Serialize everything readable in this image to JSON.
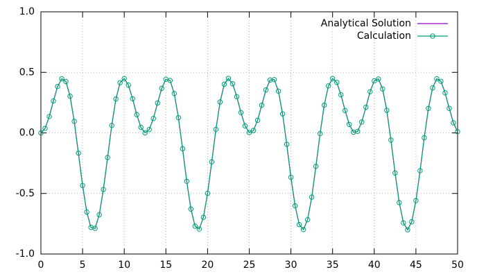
{
  "chart_data": {
    "type": "line",
    "x": [
      0,
      0.5,
      1,
      1.5,
      2,
      2.5,
      3,
      3.5,
      4,
      4.5,
      5,
      5.5,
      6,
      6.5,
      7,
      7.5,
      8,
      8.5,
      9,
      9.5,
      10,
      10.5,
      11,
      11.5,
      12,
      12.5,
      13,
      13.5,
      14,
      14.5,
      15,
      15.5,
      16,
      16.5,
      17,
      17.5,
      18,
      18.5,
      19,
      19.5,
      20,
      20.5,
      21,
      21.5,
      22,
      22.5,
      23,
      23.5,
      24,
      24.5,
      25,
      25.5,
      26,
      26.5,
      27,
      27.5,
      28,
      28.5,
      29,
      29.5,
      30,
      30.5,
      31,
      31.5,
      32,
      32.5,
      33,
      33.5,
      34,
      34.5,
      35,
      35.5,
      36,
      36.5,
      37,
      37.5,
      38,
      38.5,
      39,
      39.5,
      40,
      40.5,
      41,
      41.5,
      42,
      42.5,
      43,
      43.5,
      44,
      44.5,
      45,
      45.5,
      46,
      46.5,
      47,
      47.5,
      48,
      48.5,
      49,
      49.5,
      50
    ],
    "series": [
      {
        "name": "Analytical Solution",
        "color": "#9400d3",
        "marker": "none",
        "values": [
          0,
          0.037,
          0.135,
          0.264,
          0.383,
          0.447,
          0.424,
          0.303,
          0.095,
          -0.167,
          -0.434,
          -0.653,
          -0.78,
          -0.788,
          -0.676,
          -0.467,
          -0.203,
          0.062,
          0.28,
          0.414,
          0.449,
          0.395,
          0.282,
          0.151,
          0.046,
          0.001,
          0.028,
          0.119,
          0.247,
          0.368,
          0.443,
          0.433,
          0.325,
          0.126,
          -0.131,
          -0.4,
          -0.629,
          -0.77,
          -0.794,
          -0.697,
          -0.499,
          -0.239,
          0.029,
          0.255,
          0.402,
          0.45,
          0.406,
          0.299,
          0.168,
          0.058,
          0.003,
          0.02,
          0.104,
          0.229,
          0.355,
          0.437,
          0.44,
          0.345,
          0.157,
          -0.094,
          -0.366,
          -0.602,
          -0.757,
          -0.798,
          -0.717,
          -0.53,
          -0.276,
          -0.006,
          0.229,
          0.388,
          0.449,
          0.417,
          0.315,
          0.185,
          0.07,
          0.006,
          0.013,
          0.09,
          0.212,
          0.34,
          0.43,
          0.445,
          0.363,
          0.187,
          -0.059,
          -0.331,
          -0.575,
          -0.743,
          -0.8,
          -0.734,
          -0.559,
          -0.312,
          -0.04,
          0.202,
          0.372,
          0.447,
          0.426,
          0.331,
          0.202,
          0.083,
          0.01
        ]
      },
      {
        "name": "Calculation",
        "color": "#009e73",
        "marker": "circle",
        "values": [
          0,
          0.037,
          0.135,
          0.264,
          0.383,
          0.447,
          0.424,
          0.303,
          0.095,
          -0.167,
          -0.434,
          -0.653,
          -0.78,
          -0.788,
          -0.676,
          -0.467,
          -0.203,
          0.062,
          0.28,
          0.414,
          0.449,
          0.395,
          0.282,
          0.151,
          0.046,
          0.001,
          0.028,
          0.119,
          0.247,
          0.368,
          0.443,
          0.433,
          0.325,
          0.126,
          -0.131,
          -0.4,
          -0.629,
          -0.77,
          -0.794,
          -0.697,
          -0.499,
          -0.239,
          0.029,
          0.255,
          0.402,
          0.45,
          0.406,
          0.299,
          0.168,
          0.058,
          0.003,
          0.02,
          0.104,
          0.229,
          0.355,
          0.437,
          0.44,
          0.345,
          0.157,
          -0.094,
          -0.366,
          -0.602,
          -0.757,
          -0.798,
          -0.717,
          -0.53,
          -0.276,
          -0.006,
          0.229,
          0.388,
          0.449,
          0.417,
          0.315,
          0.185,
          0.07,
          0.006,
          0.013,
          0.09,
          0.212,
          0.34,
          0.43,
          0.445,
          0.363,
          0.187,
          -0.059,
          -0.331,
          -0.575,
          -0.743,
          -0.8,
          -0.734,
          -0.559,
          -0.312,
          -0.04,
          0.202,
          0.372,
          0.447,
          0.426,
          0.331,
          0.202,
          0.083,
          0.01
        ]
      }
    ],
    "xlim": [
      0,
      50
    ],
    "xticks": [
      0,
      5,
      10,
      15,
      20,
      25,
      30,
      35,
      40,
      45,
      50
    ],
    "ylim": [
      -1,
      1
    ],
    "yticks": [
      {
        "value": -1,
        "label": "-1.0"
      },
      -0.5,
      {
        "value": 0,
        "label": "0.0"
      },
      0.5,
      {
        "value": 1,
        "label": "1.0"
      }
    ],
    "grid": true,
    "legend": "top-right"
  }
}
